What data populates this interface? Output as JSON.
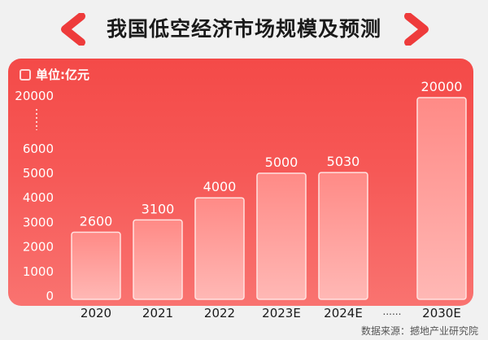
{
  "title": "我国低空经济市场规模及预测",
  "unit_label": "单位:亿元",
  "source_note": "数据来源：撼地产业研究院",
  "colors": {
    "panel_top": "#f44a48",
    "panel_bottom": "#f97370",
    "bar_top": "#ff8a86",
    "bar_bottom": "#ffb8b5",
    "bar_border": "#ffe2e0",
    "axis_text": "#ffffff",
    "chevron": "#ee3b3b"
  },
  "chart_data": {
    "type": "bar",
    "title": "我国低空经济市场规模及预测",
    "ylabel": "单位:亿元",
    "categories": [
      "2020",
      "2021",
      "2022",
      "2023E",
      "2024E",
      "2030E"
    ],
    "values": [
      2600,
      3100,
      4000,
      5000,
      5030,
      20000
    ],
    "ylim": [
      0,
      20000
    ],
    "yticks": [
      "0",
      "1000",
      "2000",
      "3000",
      "4000",
      "5000",
      "6000",
      "20000"
    ],
    "axis_break": "between 6000 and 20000",
    "category_gap_label": "......",
    "grid": false,
    "legend": "none"
  }
}
